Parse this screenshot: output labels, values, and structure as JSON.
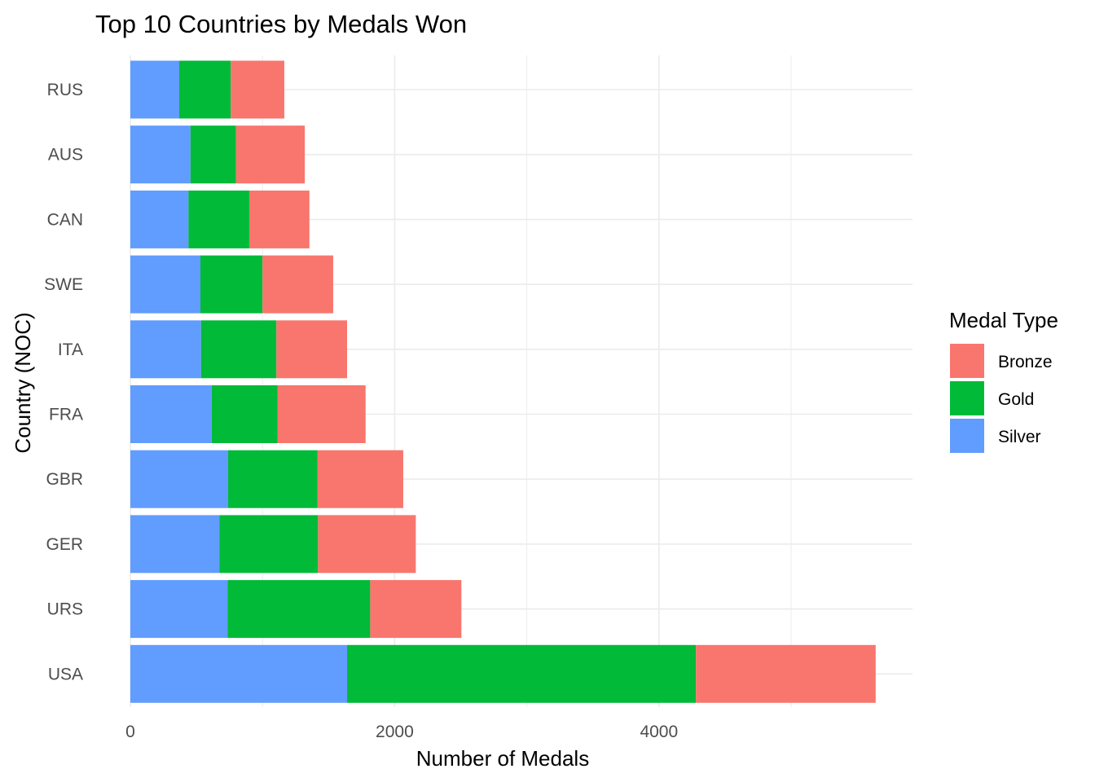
{
  "chart_data": {
    "type": "bar",
    "orientation": "horizontal",
    "stacked": true,
    "title": "Top 10 Countries by Medals Won",
    "xlabel": "Number of Medals",
    "ylabel": "Country (NOC)",
    "xlim": [
      0,
      5900
    ],
    "x_ticks": [
      0,
      2000,
      4000
    ],
    "x_tick_labels": [
      "0",
      "2000",
      "4000"
    ],
    "grid": true,
    "categories": [
      "RUS",
      "AUS",
      "CAN",
      "SWE",
      "ITA",
      "FRA",
      "GBR",
      "GER",
      "URS",
      "USA"
    ],
    "stack_order": [
      "Silver",
      "Gold",
      "Bronze"
    ],
    "series": [
      {
        "name": "Silver",
        "color": "#619cff",
        "values": [
          370,
          455,
          440,
          530,
          535,
          615,
          740,
          675,
          735,
          1640
        ]
      },
      {
        "name": "Gold",
        "color": "#00ba38",
        "values": [
          390,
          345,
          460,
          470,
          570,
          500,
          675,
          745,
          1080,
          2640
        ]
      },
      {
        "name": "Bronze",
        "color": "#f8766d",
        "values": [
          405,
          520,
          455,
          535,
          535,
          665,
          650,
          740,
          690,
          1360
        ]
      }
    ],
    "legend": {
      "title": "Medal Type",
      "position": "right",
      "entries": [
        {
          "label": "Bronze",
          "color": "#f8766d"
        },
        {
          "label": "Gold",
          "color": "#00ba38"
        },
        {
          "label": "Silver",
          "color": "#619cff"
        }
      ]
    }
  }
}
